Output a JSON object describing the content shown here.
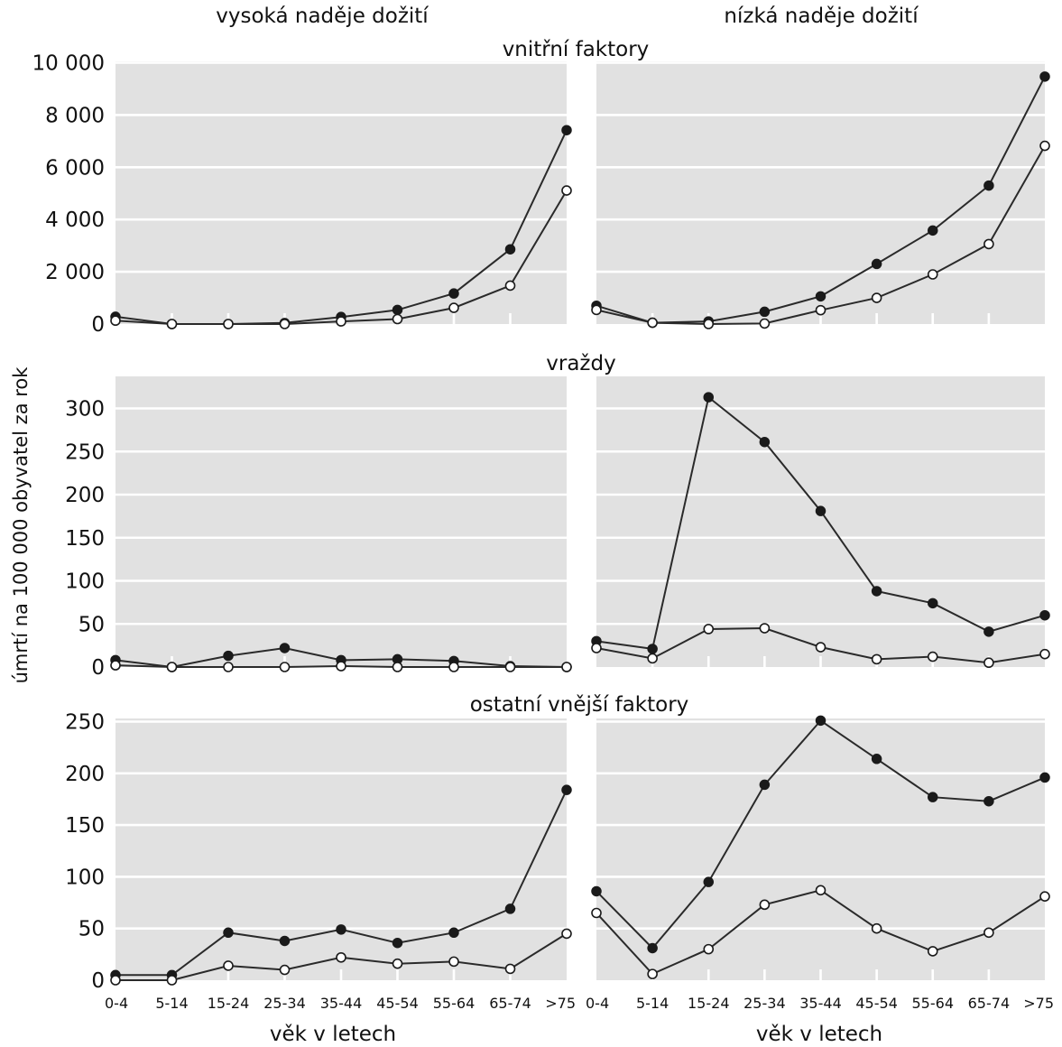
{
  "figure": {
    "column_titles": [
      "vysoká naděje dožití",
      "nízká naděje dožití"
    ],
    "y_axis_label": "úmrtí na 100 000 obyvatel za rok",
    "x_axis_label": "věk v letech",
    "categories": [
      "0-4",
      "5-14",
      "15-24",
      "25-34",
      "35-44",
      "45-54",
      "55-64",
      "65-74",
      ">75"
    ],
    "row_titles": [
      "vnitřní faktory",
      "vraždy",
      "ostatní vnější faktory"
    ],
    "row_yticks": [
      [
        "0",
        "2 000",
        "4 000",
        "6 000",
        "8 000",
        "10 000"
      ],
      [
        "0",
        "50",
        "100",
        "150",
        "200",
        "250",
        "300"
      ],
      [
        "0",
        "50",
        "100",
        "150",
        "200",
        "250"
      ]
    ]
  },
  "colors": {
    "plot_background": "#e1e1e1",
    "grid": "#ffffff",
    "line": "#2a2a2a",
    "filled_marker": "#1a1a1a",
    "open_marker": "#ffffff"
  },
  "chart_data": [
    {
      "type": "line",
      "title": "vnitřní faktory",
      "column": "vysoká naděje dožití",
      "categories": [
        "0-4",
        "5-14",
        "15-24",
        "25-34",
        "35-44",
        "45-54",
        "55-64",
        "65-74",
        ">75"
      ],
      "ylim": [
        0,
        10000
      ],
      "yticks": [
        0,
        2000,
        4000,
        6000,
        8000,
        10000
      ],
      "grid": true,
      "series": [
        {
          "marker": "filled",
          "values": [
            280,
            0,
            0,
            40,
            270,
            540,
            1170,
            2860,
            7420
          ]
        },
        {
          "marker": "open",
          "values": [
            130,
            0,
            0,
            0,
            100,
            190,
            620,
            1470,
            5110
          ]
        }
      ]
    },
    {
      "type": "line",
      "title": "vnitřní faktory",
      "column": "nízká naděje dožití",
      "categories": [
        "0-4",
        "5-14",
        "15-24",
        "25-34",
        "35-44",
        "45-54",
        "55-64",
        "65-74",
        ">75"
      ],
      "ylim": [
        0,
        10000
      ],
      "yticks": [
        0,
        2000,
        4000,
        6000,
        8000,
        10000
      ],
      "grid": true,
      "series": [
        {
          "marker": "filled",
          "values": [
            700,
            50,
            100,
            470,
            1060,
            2300,
            3580,
            5300,
            9470
          ]
        },
        {
          "marker": "open",
          "values": [
            540,
            50,
            0,
            20,
            530,
            1000,
            1900,
            3060,
            6820
          ]
        }
      ]
    },
    {
      "type": "line",
      "title": "vraždy",
      "column": "vysoká naděje dožití",
      "categories": [
        "0-4",
        "5-14",
        "15-24",
        "25-34",
        "35-44",
        "45-54",
        "55-64",
        "65-74",
        ">75"
      ],
      "ylim": [
        0,
        320
      ],
      "yticks": [
        0,
        50,
        100,
        150,
        200,
        250,
        300
      ],
      "grid": true,
      "series": [
        {
          "marker": "filled",
          "values": [
            8,
            0,
            13,
            22,
            8,
            9,
            7,
            1,
            0
          ]
        },
        {
          "marker": "open",
          "values": [
            2,
            0,
            0,
            0,
            1,
            0,
            0,
            0,
            0
          ]
        }
      ]
    },
    {
      "type": "line",
      "title": "vraždy",
      "column": "nízká naděje dožití",
      "categories": [
        "0-4",
        "5-14",
        "15-24",
        "25-34",
        "35-44",
        "45-54",
        "55-64",
        "65-74",
        ">75"
      ],
      "ylim": [
        0,
        320
      ],
      "yticks": [
        0,
        50,
        100,
        150,
        200,
        250,
        300
      ],
      "grid": true,
      "series": [
        {
          "marker": "filled",
          "values": [
            30,
            21,
            313,
            261,
            181,
            88,
            74,
            41,
            60
          ]
        },
        {
          "marker": "open",
          "values": [
            22,
            10,
            44,
            45,
            23,
            9,
            12,
            5,
            15
          ]
        }
      ]
    },
    {
      "type": "line",
      "title": "ostatní vnější faktory",
      "column": "vysoká naděje dožití",
      "categories": [
        "0-4",
        "5-14",
        "15-24",
        "25-34",
        "35-44",
        "45-54",
        "55-64",
        "65-74",
        ">75"
      ],
      "ylim": [
        0,
        250
      ],
      "yticks": [
        0,
        50,
        100,
        150,
        200,
        250
      ],
      "grid": true,
      "series": [
        {
          "marker": "filled",
          "values": [
            5,
            5,
            46,
            38,
            49,
            36,
            46,
            69,
            184
          ]
        },
        {
          "marker": "open",
          "values": [
            0,
            0,
            14,
            10,
            22,
            16,
            18,
            11,
            45
          ]
        }
      ]
    },
    {
      "type": "line",
      "title": "ostatní vnější faktory",
      "column": "nízká naděje dožití",
      "categories": [
        "0-4",
        "5-14",
        "15-24",
        "25-34",
        "35-44",
        "45-54",
        "55-64",
        "65-74",
        ">75"
      ],
      "ylim": [
        0,
        250
      ],
      "yticks": [
        0,
        50,
        100,
        150,
        200,
        250
      ],
      "grid": true,
      "series": [
        {
          "marker": "filled",
          "values": [
            86,
            31,
            95,
            189,
            251,
            214,
            177,
            173,
            196
          ]
        },
        {
          "marker": "open",
          "values": [
            65,
            6,
            30,
            73,
            87,
            50,
            28,
            46,
            81
          ]
        }
      ]
    }
  ]
}
